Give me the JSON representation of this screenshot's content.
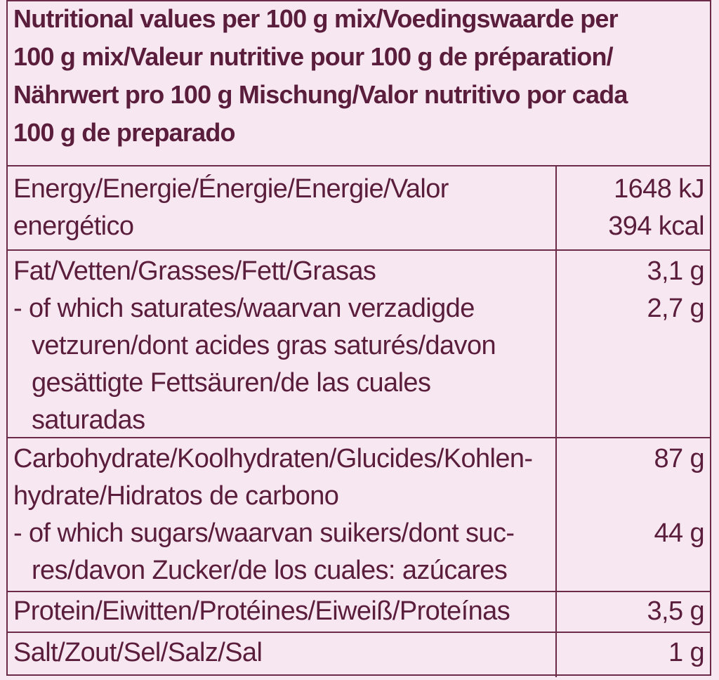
{
  "header": {
    "lines": [
      "Nutritional values per 100 g mix/Voedingswaarde per",
      "100 g mix/Valeur nutritive pour 100 g de préparation/",
      "Nährwert pro 100 g Mischung/Valor nutritivo por cada",
      "100 g de preparado"
    ]
  },
  "rows": {
    "energy": {
      "label_lines": [
        "Energy/Energie/Énergie/Energie/Valor",
        "energético"
      ],
      "value_kj": "1648 kJ",
      "value_kcal": "394 kcal"
    },
    "fat": {
      "label": "Fat/Vetten/Grasses/Fett/Grasas",
      "value": "3,1 g",
      "sub_lines": [
        "- of which saturates/waarvan verzadigde",
        "vetzuren/dont acides gras saturés/davon",
        "gesättigte Fettsäuren/de las cuales",
        "saturadas"
      ],
      "sub_value": "2,7 g"
    },
    "carbohydrate": {
      "label_lines": [
        "Carbohydrate/Koolhydraten/Glucides/Kohlen-",
        "hydrate/Hidratos de carbono"
      ],
      "value": "87 g",
      "sub_lines": [
        "- of which sugars/waarvan suikers/dont suc-",
        "res/davon Zucker/de los cuales: azúcares"
      ],
      "sub_value": "44 g"
    },
    "protein": {
      "label": "Protein/Eiwitten/Protéines/Eiweiß/Proteínas",
      "value": "3,5 g"
    },
    "salt": {
      "label": "Salt/Zout/Sel/Salz/Sal",
      "value": "1 g"
    }
  }
}
